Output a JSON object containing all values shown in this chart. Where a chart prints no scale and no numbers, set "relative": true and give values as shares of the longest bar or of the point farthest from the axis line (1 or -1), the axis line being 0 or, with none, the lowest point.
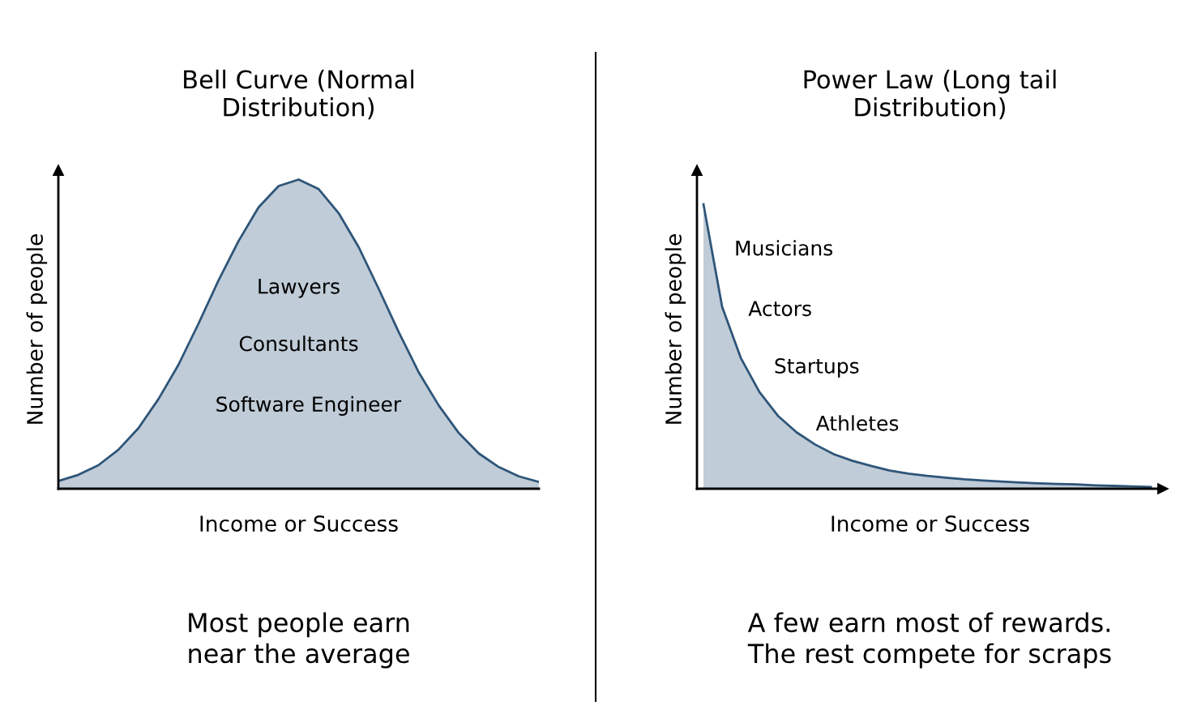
{
  "chart_data": [
    {
      "type": "area",
      "relative": true,
      "title": "Bell Curve (Normal\nDistribution)",
      "xlabel": "Income or Success",
      "ylabel": "Number of people",
      "categories": [
        null,
        null,
        null,
        null,
        null,
        null,
        null,
        null,
        null,
        null,
        null,
        null,
        null,
        null,
        null,
        null,
        null,
        null,
        null,
        null,
        null,
        null,
        null,
        null,
        null
      ],
      "series": [
        {
          "color": "#2e5579",
          "values": [
            0.025,
            0.045,
            0.076,
            0.126,
            0.196,
            0.29,
            0.401,
            0.534,
            0.674,
            0.801,
            0.91,
            0.979,
            1.0,
            0.969,
            0.891,
            0.781,
            0.646,
            0.506,
            0.376,
            0.269,
            0.18,
            0.114,
            0.07,
            0.04,
            0.022
          ]
        }
      ],
      "grid": false,
      "legend": false,
      "annotations": [
        "Lawyers",
        "Consultants",
        "Software Engineer",
        "Most people earn\nnear the average"
      ]
    },
    {
      "type": "area",
      "relative": true,
      "title": "Power Law (Long tail\nDistribution)",
      "xlabel": "Income or Success",
      "ylabel": "Number of people",
      "categories": [
        null,
        null,
        null,
        null,
        null,
        null,
        null,
        null,
        null,
        null,
        null,
        null,
        null,
        null,
        null,
        null,
        null,
        null,
        null,
        null,
        null,
        null,
        null,
        null,
        null
      ],
      "series": [
        {
          "color": "#2e5579",
          "values": [
            1.0,
            0.64,
            0.46,
            0.34,
            0.256,
            0.198,
            0.155,
            0.121,
            0.098,
            0.08,
            0.064,
            0.053,
            0.045,
            0.039,
            0.033,
            0.029,
            0.025,
            0.022,
            0.019,
            0.017,
            0.015,
            0.012,
            0.01,
            0.008,
            0.006
          ]
        }
      ],
      "grid": false,
      "legend": false,
      "annotations": [
        "Musicians",
        "Actors",
        "Startups",
        "Athletes",
        "A few earn most of rewards.\nThe rest compete for scraps"
      ]
    }
  ]
}
